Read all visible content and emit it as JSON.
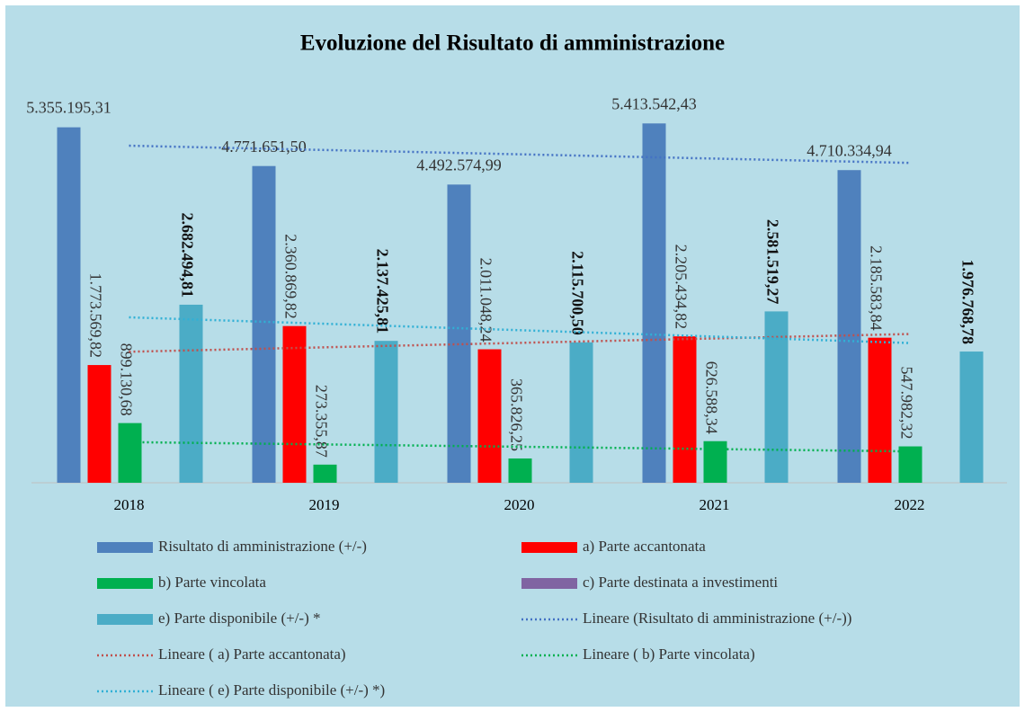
{
  "chart_data": {
    "type": "bar",
    "title": "Evoluzione del Risultato di amministrazione",
    "categories": [
      "2018",
      "2019",
      "2020",
      "2021",
      "2022"
    ],
    "ylim": [
      0,
      6000000
    ],
    "series": [
      {
        "name": "Risultato di amministrazione (+/-)",
        "color": "#4f81bd",
        "values": [
          5355195.31,
          4771651.5,
          4492574.99,
          5413542.43,
          4710334.94
        ],
        "value_labels": [
          "5.355.195,31",
          "4.771.651,50",
          "4.492.574,99",
          "5.413.542,43",
          "4.710.334,94"
        ],
        "trendline": {
          "name": "Lineare (Risultato di amministrazione (+/-))",
          "color": "#4472c4"
        }
      },
      {
        "name": "a) Parte accantonata",
        "color": "#ff0000",
        "values": [
          1773569.82,
          2360869.82,
          2011048.24,
          2205434.82,
          2185583.84
        ],
        "value_labels": [
          "1.773.569,82",
          "2.360.869,82",
          "2.011.048,24",
          "2.205.434,82",
          "2.185.583,84"
        ],
        "trendline": {
          "name": "Lineare ( a) Parte accantonata)",
          "color": "#c0504d"
        }
      },
      {
        "name": "b) Parte vincolata",
        "color": "#00b050",
        "values": [
          899130.68,
          273355.87,
          365826.25,
          626588.34,
          547982.32
        ],
        "value_labels": [
          "899.130,68",
          "273.355,87",
          "365.826,25",
          "626.588,34",
          "547.982,32"
        ],
        "trendline": {
          "name": "Lineare ( b) Parte vincolata)",
          "color": "#00b050"
        }
      },
      {
        "name": "c) Parte destinata a investimenti",
        "color": "#8064a2",
        "values": [
          null,
          null,
          null,
          null,
          null
        ]
      },
      {
        "name": "e) Parte disponibile (+/-) *",
        "color": "#4bacc6",
        "values": [
          2682494.81,
          2137425.81,
          2115700.5,
          2581519.27,
          1976768.78
        ],
        "value_labels": [
          "2.682.494,81",
          "2.137.425,81",
          "2.115.700,50",
          "2.581.519,27",
          "1.976.768,78"
        ],
        "trendline": {
          "name": "Lineare ( e) Parte disponibile (+/-) *)",
          "color": "#31b0d5"
        }
      }
    ]
  }
}
